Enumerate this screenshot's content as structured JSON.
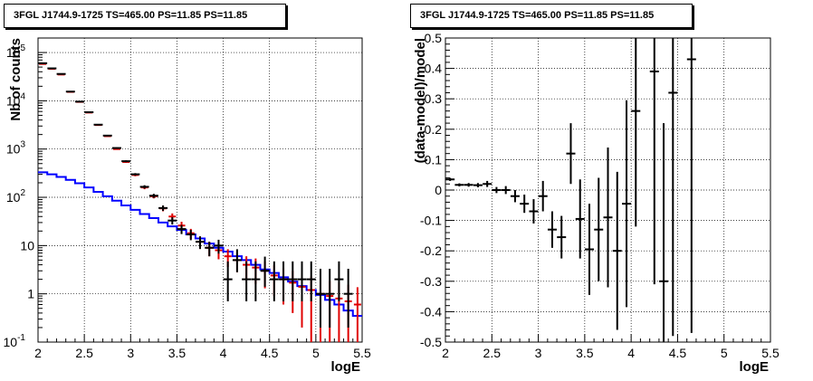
{
  "colors": {
    "data": "#000000",
    "model": "#e00000",
    "background_model": "#0000ff",
    "grid": "#000000"
  },
  "chart_data": [
    {
      "type": "line",
      "title": "3FGL J1744.9-1725 TS=465.00 PS=11.85 PS=11.85",
      "xlabel": "logE",
      "ylabel": "Nb of counts",
      "xlim": [
        2,
        5.5
      ],
      "ylim": [
        0.1,
        200000
      ],
      "yscale": "log",
      "grid": true,
      "x_ticks": [
        "2",
        "2.5",
        "3",
        "3.5",
        "4",
        "4.5",
        "5",
        "5.5"
      ],
      "y_ticks": [
        {
          "v": 0.1,
          "label": "10",
          "exp": "-1"
        },
        {
          "v": 1,
          "label": "1",
          "exp": ""
        },
        {
          "v": 10,
          "label": "10",
          "exp": ""
        },
        {
          "v": 100,
          "label": "10",
          "exp": "2"
        },
        {
          "v": 1000,
          "label": "10",
          "exp": "3"
        },
        {
          "v": 10000,
          "label": "10",
          "exp": "4"
        },
        {
          "v": 100000,
          "label": "10",
          "exp": "5"
        }
      ],
      "bin_edges": [
        2.0,
        2.1,
        2.2,
        2.3,
        2.4,
        2.5,
        2.6,
        2.7,
        2.8,
        2.9,
        3.0,
        3.1,
        3.2,
        3.3,
        3.4,
        3.5,
        3.6,
        3.7,
        3.8,
        3.9,
        4.0,
        4.1,
        4.2,
        4.3,
        4.4,
        4.5,
        4.6,
        4.7,
        4.8,
        4.9,
        5.0,
        5.1,
        5.2,
        5.3,
        5.4,
        5.5
      ],
      "series": [
        {
          "role": "data",
          "x": [
            2.05,
            2.15,
            2.25,
            2.35,
            2.45,
            2.55,
            2.65,
            2.75,
            2.85,
            2.95,
            3.05,
            3.15,
            3.25,
            3.35,
            3.45,
            3.55,
            3.65,
            3.75,
            3.85,
            3.95,
            4.05,
            4.15,
            4.25,
            4.35,
            4.45,
            4.55,
            4.65,
            4.75,
            4.85,
            4.95,
            5.05,
            5.15,
            5.25,
            5.35
          ],
          "y": [
            60000,
            47000,
            36000,
            15500,
            9600,
            5800,
            3200,
            1900,
            1050,
            560,
            300,
            165,
            108,
            60,
            33,
            22,
            17,
            12,
            9,
            10,
            2,
            5,
            2,
            2,
            3,
            2,
            2,
            2,
            2,
            2,
            1,
            1,
            2,
            1
          ],
          "err_low": [
            250,
            220,
            190,
            125,
            98,
            76,
            57,
            44,
            32,
            24,
            17,
            13,
            10,
            7.7,
            5.7,
            4.7,
            4.1,
            3.5,
            3,
            3.2,
            1.3,
            2.2,
            1.3,
            1.3,
            1.6,
            1.3,
            1.3,
            1.3,
            1.3,
            1.3,
            0.8,
            0.8,
            1.3,
            0.8
          ],
          "err_high": [
            250,
            220,
            190,
            125,
            98,
            76,
            57,
            44,
            32,
            24,
            17,
            13,
            10,
            7.7,
            5.7,
            4.7,
            4.1,
            3.5,
            3,
            3.2,
            2.7,
            3.4,
            2.7,
            2.7,
            2.9,
            2.7,
            2.7,
            2.7,
            2.7,
            2.7,
            2.3,
            2.3,
            2.7,
            2.3
          ]
        },
        {
          "role": "model",
          "x": [
            2.05,
            2.15,
            2.25,
            2.35,
            2.45,
            2.55,
            2.65,
            2.75,
            2.85,
            2.95,
            3.05,
            3.15,
            3.25,
            3.35,
            3.45,
            3.55,
            3.65,
            3.75,
            3.85,
            3.95,
            4.05,
            4.15,
            4.25,
            4.35,
            4.45,
            4.55,
            4.65,
            4.75,
            4.85,
            4.95,
            5.05,
            5.15,
            5.25,
            5.35,
            5.45
          ],
          "y": [
            58000,
            46000,
            35000,
            15300,
            9500,
            5700,
            3150,
            1850,
            1000,
            540,
            290,
            160,
            105,
            59,
            40,
            26,
            18,
            12,
            9,
            8,
            6,
            5,
            4,
            3.5,
            3,
            2.4,
            2,
            1.7,
            1.4,
            1.2,
            1,
            0.9,
            0.8,
            0.7,
            0.6
          ],
          "err": [
            240,
            215,
            187,
            124,
            97,
            75,
            56,
            43,
            32,
            23,
            17,
            13,
            10,
            7.7,
            6.3,
            5.1,
            4.2,
            3.5,
            3,
            2.8,
            2.4,
            2.2,
            2,
            1.9,
            1.7,
            1.5,
            1.4,
            1.3,
            1.2,
            1.1,
            1,
            0.95,
            0.9,
            0.84,
            0.77
          ]
        },
        {
          "role": "background_model",
          "step": true,
          "values": [
            330,
            300,
            265,
            230,
            195,
            160,
            130,
            105,
            85,
            68,
            55,
            45,
            37,
            30,
            25,
            21,
            17,
            14,
            11,
            9,
            7.5,
            6,
            5,
            4,
            3.2,
            2.7,
            2.2,
            1.8,
            1.45,
            1.2,
            0.95,
            0.75,
            0.6,
            0.45,
            0.35
          ]
        }
      ]
    },
    {
      "type": "line",
      "title": "3FGL J1744.9-1725 TS=465.00 PS=11.85 PS=11.85",
      "xlabel": "logE",
      "ylabel": "(data-model)/model",
      "xlim": [
        2,
        5.5
      ],
      "ylim": [
        -0.5,
        0.5
      ],
      "grid": true,
      "x_ticks": [
        "2",
        "2.5",
        "3",
        "3.5",
        "4",
        "4.5",
        "5",
        "5.5"
      ],
      "y_ticks": [
        "-0.5",
        "-0.4",
        "-0.3",
        "-0.2",
        "-0.1",
        "0",
        "0.1",
        "0.2",
        "0.3",
        "0.4",
        "0.5"
      ],
      "series": [
        {
          "role": "residual",
          "x": [
            2.05,
            2.15,
            2.25,
            2.35,
            2.45,
            2.55,
            2.65,
            2.75,
            2.85,
            2.95,
            3.05,
            3.15,
            3.25,
            3.35,
            3.45,
            3.55,
            3.65,
            3.75,
            3.85,
            3.95,
            4.05,
            4.25,
            4.35,
            4.45,
            4.65
          ],
          "y": [
            0.035,
            0.017,
            0.017,
            0.016,
            0.02,
            0.0,
            0.0,
            -0.02,
            -0.045,
            -0.07,
            -0.02,
            -0.13,
            -0.155,
            0.12,
            -0.095,
            -0.195,
            -0.13,
            -0.09,
            -0.2,
            -0.045,
            0.26,
            0.39,
            -0.3,
            0.32,
            0.43
          ],
          "err": [
            0.005,
            0.005,
            0.006,
            0.007,
            0.01,
            0.01,
            0.013,
            0.02,
            0.03,
            0.04,
            0.05,
            0.06,
            0.07,
            0.1,
            0.13,
            0.15,
            0.17,
            0.23,
            0.26,
            0.34,
            0.38,
            0.7,
            0.52,
            0.8,
            0.9
          ]
        }
      ]
    }
  ]
}
